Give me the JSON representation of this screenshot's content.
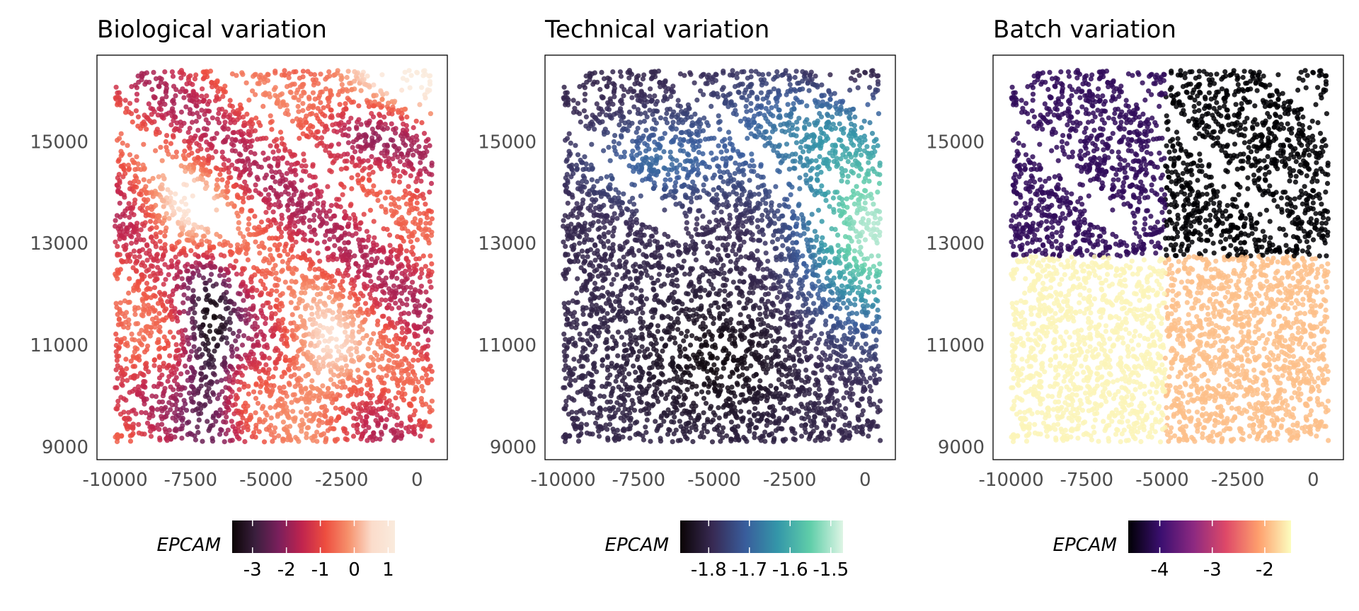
{
  "chart_data": [
    {
      "type": "scatter",
      "title": "Biological variation",
      "xlim": [
        -10600,
        1000
      ],
      "ylim": [
        8750,
        16700
      ],
      "x_ticks": [
        {
          "value": -10000,
          "label": "-10000"
        },
        {
          "value": -7500,
          "label": "-7500"
        },
        {
          "value": -5000,
          "label": "-5000"
        },
        {
          "value": -2500,
          "label": "-2500"
        },
        {
          "value": 0,
          "label": "0"
        }
      ],
      "y_ticks": [
        {
          "value": 9000,
          "label": "9000"
        },
        {
          "value": 11000,
          "label": "11000"
        },
        {
          "value": 13000,
          "label": "13000"
        },
        {
          "value": 15000,
          "label": "15000"
        }
      ],
      "legend": {
        "title": "EPCAM",
        "placement": "bottom",
        "range": [
          -3.6,
          1.2
        ],
        "colors": [
          "#0b0405",
          "#3b1f3e",
          "#7a1f5c",
          "#c0244e",
          "#ed4d3f",
          "#f6916c",
          "#fbdccb",
          "#faebdd"
        ],
        "ticks": [
          {
            "value": -3,
            "label": "-3"
          },
          {
            "value": -2,
            "label": "-2"
          },
          {
            "value": -1,
            "label": "-1"
          },
          {
            "value": 0,
            "label": "0"
          },
          {
            "value": 1,
            "label": "1"
          }
        ]
      }
    },
    {
      "type": "scatter",
      "title": "Technical variation",
      "xlim": [
        -10600,
        1000
      ],
      "ylim": [
        8750,
        16700
      ],
      "x_ticks": [
        {
          "value": -10000,
          "label": "-10000"
        },
        {
          "value": -7500,
          "label": "-7500"
        },
        {
          "value": -5000,
          "label": "-5000"
        },
        {
          "value": -2500,
          "label": "-2500"
        },
        {
          "value": 0,
          "label": "0"
        }
      ],
      "y_ticks": [
        {
          "value": 9000,
          "label": "9000"
        },
        {
          "value": 11000,
          "label": "11000"
        },
        {
          "value": 13000,
          "label": "13000"
        },
        {
          "value": 15000,
          "label": "15000"
        }
      ],
      "legend": {
        "title": "EPCAM",
        "placement": "bottom",
        "range": [
          -1.87,
          -1.47
        ],
        "colors": [
          "#0b0405",
          "#382a54",
          "#395d9c",
          "#3497a9",
          "#60cea9",
          "#def5e5"
        ],
        "ticks": [
          {
            "value": -1.8,
            "label": "-1.8"
          },
          {
            "value": -1.7,
            "label": "-1.7"
          },
          {
            "value": -1.6,
            "label": "-1.6"
          },
          {
            "value": -1.5,
            "label": "-1.5"
          }
        ]
      }
    },
    {
      "type": "scatter",
      "title": "Batch variation",
      "xlim": [
        -10600,
        1000
      ],
      "ylim": [
        8750,
        16700
      ],
      "x_ticks": [
        {
          "value": -10000,
          "label": "-10000"
        },
        {
          "value": -7500,
          "label": "-7500"
        },
        {
          "value": -5000,
          "label": "-5000"
        },
        {
          "value": -2500,
          "label": "-2500"
        },
        {
          "value": 0,
          "label": "0"
        }
      ],
      "y_ticks": [
        {
          "value": 9000,
          "label": "9000"
        },
        {
          "value": 11000,
          "label": "11000"
        },
        {
          "value": 13000,
          "label": "13000"
        },
        {
          "value": 15000,
          "label": "15000"
        }
      ],
      "legend": {
        "title": "EPCAM",
        "placement": "bottom",
        "range": [
          -4.6,
          -1.5
        ],
        "colors": [
          "#000004",
          "#3b0f70",
          "#8c2981",
          "#de4968",
          "#fe9f6d",
          "#fcfdbf"
        ],
        "ticks": [
          {
            "value": -4,
            "label": "-4"
          },
          {
            "value": -3,
            "label": "-3"
          },
          {
            "value": -2,
            "label": "-2"
          }
        ]
      },
      "quadrants": [
        {
          "x": [
            -10000,
            -4900
          ],
          "y": [
            12750,
            16400
          ],
          "value": -4.1
        },
        {
          "x": [
            -4900,
            500
          ],
          "y": [
            12750,
            16400
          ],
          "value": -4.6
        },
        {
          "x": [
            -10000,
            -4900
          ],
          "y": [
            9100,
            12750
          ],
          "value": -1.55
        },
        {
          "x": [
            -4900,
            500
          ],
          "y": [
            9100,
            12750
          ],
          "value": -1.9
        }
      ]
    }
  ]
}
